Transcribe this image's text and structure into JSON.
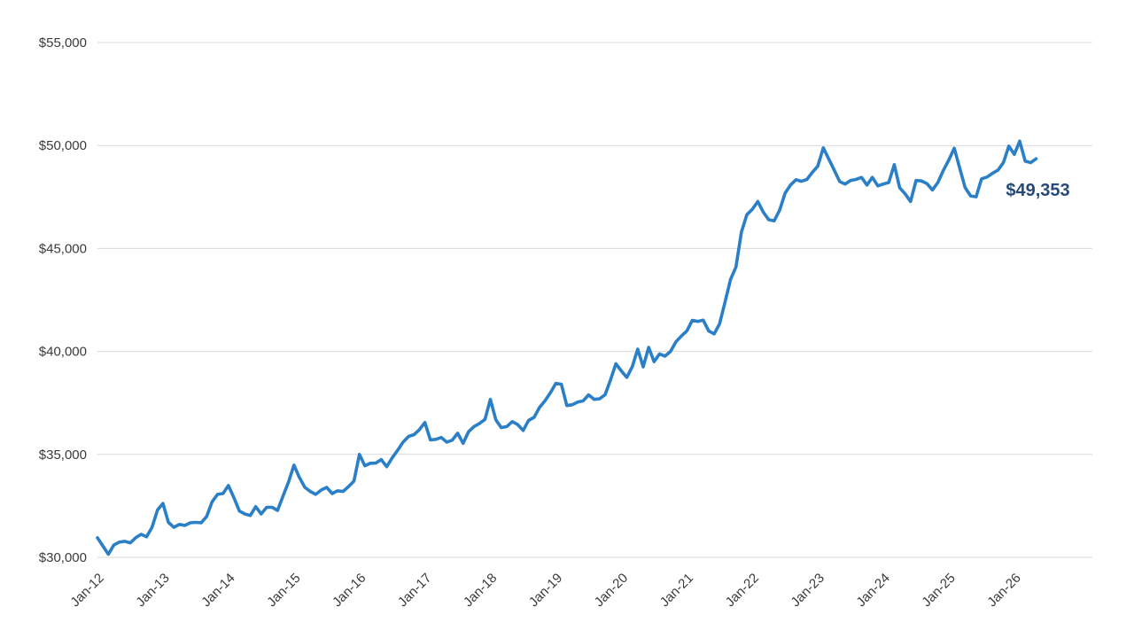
{
  "chart_data": {
    "type": "line",
    "title": "",
    "x_unit": "month",
    "x_start": "Jan-12",
    "x_end": "May-26",
    "x_tick_labels": [
      "Jan-12",
      "Jan-13",
      "Jan-14",
      "Jan-15",
      "Jan-16",
      "Jan-17",
      "Jan-18",
      "Jan-19",
      "Jan-20",
      "Jan-21",
      "Jan-22",
      "Jan-23",
      "Jan-24",
      "Jan-25",
      "Jan-26"
    ],
    "months_per_tick": 12,
    "y_tick_labels": [
      "$30,000",
      "$35,000",
      "$40,000",
      "$45,000",
      "$50,000",
      "$55,000"
    ],
    "ylim": [
      30000,
      55000
    ],
    "y_step": 5000,
    "grid": "horizontal",
    "legend": "none",
    "series": [
      {
        "name": "value",
        "color": "#2b7fc7",
        "values": [
          30950,
          30550,
          30150,
          30600,
          30740,
          30780,
          30700,
          30950,
          31120,
          31000,
          31460,
          32300,
          32620,
          31700,
          31460,
          31600,
          31550,
          31680,
          31700,
          31680,
          31980,
          32700,
          33060,
          33100,
          33490,
          32900,
          32250,
          32110,
          32030,
          32460,
          32110,
          32430,
          32430,
          32280,
          32970,
          33650,
          34480,
          33880,
          33400,
          33200,
          33060,
          33270,
          33400,
          33100,
          33230,
          33200,
          33440,
          33700,
          35000,
          34450,
          34570,
          34580,
          34750,
          34400,
          34830,
          35200,
          35600,
          35870,
          35960,
          36200,
          36550,
          35700,
          35730,
          35820,
          35600,
          35690,
          36030,
          35540,
          36100,
          36350,
          36500,
          36700,
          37670,
          36680,
          36300,
          36350,
          36590,
          36450,
          36160,
          36650,
          36800,
          37280,
          37600,
          38000,
          38450,
          38410,
          37370,
          37410,
          37540,
          37600,
          37890,
          37670,
          37700,
          37890,
          38600,
          39400,
          39050,
          38740,
          39260,
          40110,
          39250,
          40200,
          39500,
          39880,
          39770,
          40000,
          40470,
          40750,
          41000,
          41510,
          41460,
          41520,
          41000,
          40850,
          41340,
          42400,
          43500,
          44100,
          45800,
          46640,
          46900,
          47280,
          46770,
          46400,
          46340,
          46860,
          47690,
          48080,
          48340,
          48260,
          48350,
          48700,
          49000,
          49890,
          49350,
          48810,
          48250,
          48130,
          48300,
          48350,
          48450,
          48080,
          48450,
          48040,
          48130,
          48200,
          49070,
          47950,
          47650,
          47280,
          48300,
          48280,
          48150,
          47840,
          48200,
          48790,
          49300,
          49870,
          48900,
          47950,
          47550,
          47510,
          48380,
          48470,
          48650,
          48800,
          49170,
          49970,
          49570,
          50210,
          49240,
          49170,
          49353
        ]
      }
    ],
    "end_label": {
      "text": "$49,353",
      "value": 49353,
      "color": "#27497a"
    }
  },
  "colors": {
    "grid": "#d9d9d9",
    "axis_text": "#3a3a3a",
    "line": "#2b7fc7",
    "end_label": "#27497a",
    "background": "#ffffff"
  }
}
